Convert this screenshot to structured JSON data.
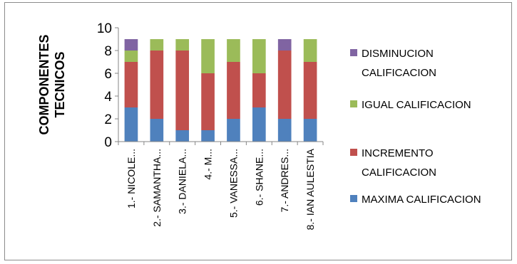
{
  "chart_data": {
    "type": "bar",
    "stacked": true,
    "ylabel": [
      "COMPONENTES",
      "TECNICOS"
    ],
    "ylim": [
      0,
      10
    ],
    "yticks": [
      0,
      2,
      4,
      6,
      8,
      10
    ],
    "grid": false,
    "legend_position": "right",
    "categories": [
      "1.- NICOLE...",
      "2.- SAMANTHA...",
      "3.- DANIELA...",
      "4.- M...",
      "5.- VANESSA...",
      "6.- SHANE...",
      "7.- ANDRES...",
      "8.- IAN AULESTIA"
    ],
    "series": [
      {
        "name": "MAXIMA CALIFICACION",
        "color": "#4F81BD",
        "values": [
          3,
          2,
          1,
          1,
          2,
          3,
          2,
          2
        ]
      },
      {
        "name": "INCREMENTO CALIFICACION",
        "color": "#C0504D",
        "values": [
          4,
          6,
          7,
          5,
          5,
          3,
          6,
          5
        ]
      },
      {
        "name": "IGUAL CALIFICACION",
        "color": "#9BBB59",
        "values": [
          1,
          1,
          1,
          3,
          2,
          3,
          0,
          2
        ]
      },
      {
        "name": "DISMINUCION CALIFICACION",
        "color": "#8064A2",
        "values": [
          1,
          0,
          0,
          0,
          0,
          0,
          1,
          0
        ]
      }
    ],
    "legend": [
      {
        "lines": [
          "DISMINUCION",
          "CALIFICACION"
        ],
        "color": "#8064A2"
      },
      {
        "lines": [
          "IGUAL CALIFICACION"
        ],
        "color": "#9BBB59"
      },
      {
        "lines": [
          "INCREMENTO",
          "CALIFICACION"
        ],
        "color": "#C0504D"
      },
      {
        "lines": [
          "MAXIMA CALIFICACION"
        ],
        "color": "#4F81BD"
      }
    ]
  }
}
